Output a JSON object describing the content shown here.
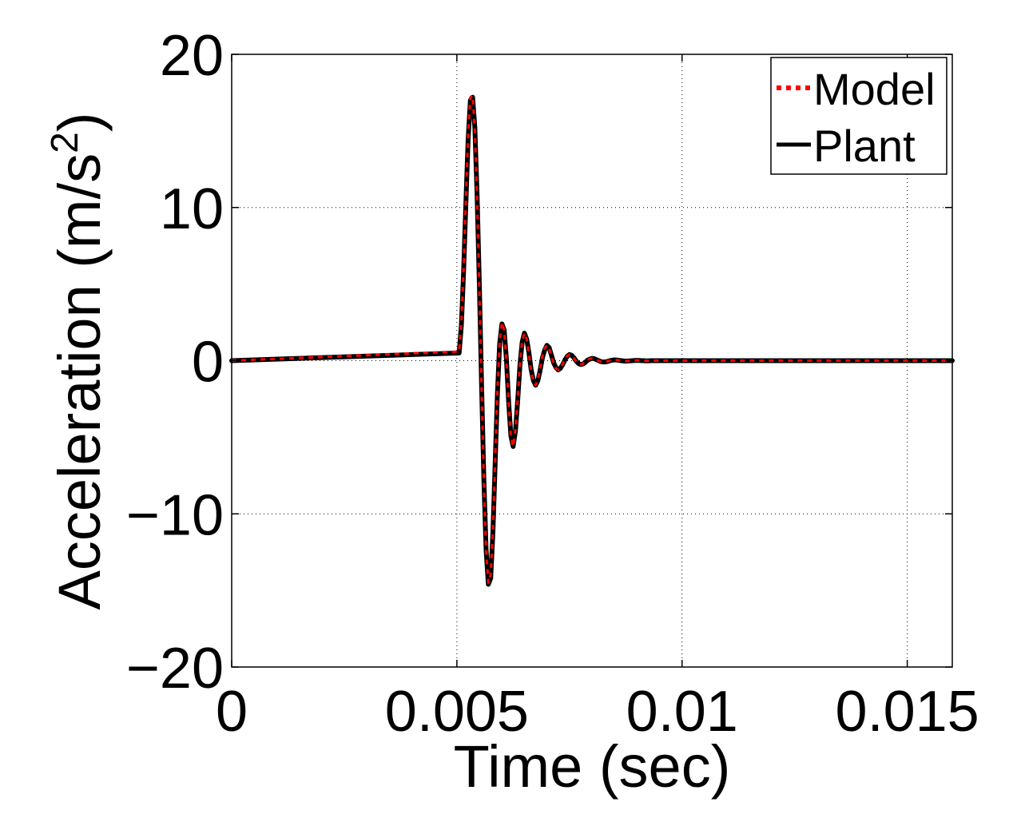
{
  "chart_data": {
    "type": "line",
    "title": "",
    "xlabel": "Time (sec)",
    "ylabel_main": "Acceleration (m/s",
    "ylabel_sup": "2",
    "ylabel_close": ")",
    "xlim": [
      0,
      0.016
    ],
    "ylim": [
      -20,
      20
    ],
    "xticks": [
      0,
      0.005,
      0.01,
      0.015
    ],
    "xtick_labels": [
      "0",
      "0.005",
      "0.01",
      "0.015"
    ],
    "yticks": [
      -20,
      -10,
      0,
      10,
      20
    ],
    "ytick_labels": [
      "−20",
      "−10",
      "0",
      "10",
      "20"
    ],
    "grid": true,
    "legend_position": "top-right",
    "series": [
      {
        "name": "Model",
        "color": "#ff0000",
        "style": "dotted",
        "x": [
          0,
          0.00505,
          0.0051,
          0.00515,
          0.0052,
          0.00525,
          0.0053,
          0.00535,
          0.0054,
          0.00545,
          0.0055,
          0.00555,
          0.0056,
          0.00565,
          0.0057,
          0.00575,
          0.0058,
          0.00585,
          0.0059,
          0.00595,
          0.006,
          0.00605,
          0.0061,
          0.00615,
          0.0062,
          0.00625,
          0.0063,
          0.00635,
          0.0064,
          0.00645,
          0.0065,
          0.00655,
          0.0066,
          0.00665,
          0.0067,
          0.00675,
          0.0068,
          0.00685,
          0.0069,
          0.00695,
          0.007,
          0.00705,
          0.0071,
          0.00715,
          0.0072,
          0.00725,
          0.0073,
          0.00735,
          0.0074,
          0.00745,
          0.0075,
          0.00755,
          0.0076,
          0.00765,
          0.0077,
          0.00775,
          0.0078,
          0.00785,
          0.0079,
          0.00795,
          0.008,
          0.00805,
          0.0081,
          0.00815,
          0.0082,
          0.00825,
          0.0083,
          0.00835,
          0.0084,
          0.00845,
          0.0085,
          0.00855,
          0.0086,
          0.00865,
          0.0087,
          0.00875,
          0.0088,
          0.00885,
          0.0089,
          0.00895,
          0.009,
          0.00905,
          0.0091,
          0.00915,
          0.0092,
          0.00925,
          0.0093,
          0.00935,
          0.0094,
          0.00945,
          0.0095,
          0.00955,
          0.0096,
          0.00965,
          0.0097,
          0.00975,
          0.0098,
          0.00985,
          0.0099,
          0.00995,
          0.01,
          0.01005,
          0.0101,
          0.01015,
          0.0102,
          0.01025,
          0.0103,
          0.01035,
          0.0104,
          0.01045,
          0.0105,
          0.016
        ],
        "y": [
          0,
          0.6,
          2.5,
          6.0,
          10.5,
          14.8,
          17.2,
          17.3,
          15.0,
          10.5,
          4.5,
          -2.0,
          -8.0,
          -12.5,
          -14.5,
          -14.0,
          -11.0,
          -6.5,
          -2.0,
          1.2,
          2.5,
          2.0,
          0.0,
          -2.8,
          -5.0,
          -5.6,
          -4.5,
          -2.5,
          -0.2,
          1.3,
          1.8,
          1.4,
          0.4,
          -0.7,
          -1.4,
          -1.6,
          -1.2,
          -0.5,
          0.3,
          0.8,
          1.0,
          0.8,
          0.3,
          -0.2,
          -0.5,
          -0.6,
          -0.5,
          -0.2,
          0.1,
          0.3,
          0.4,
          0.35,
          0.15,
          -0.05,
          -0.2,
          -0.25,
          -0.2,
          -0.1,
          0.05,
          0.12,
          0.15,
          0.12,
          0.06,
          -0.02,
          -0.07,
          -0.09,
          -0.08,
          -0.04,
          0.01,
          0.04,
          0.05,
          0.04,
          0.02,
          0.0,
          -0.02,
          -0.03,
          -0.02,
          -0.01,
          0.01,
          0.01,
          0.02,
          0.01,
          0.0,
          0.0,
          -0.01,
          -0.01,
          0.0,
          0.0,
          0.0,
          0.0,
          0.0,
          0.0,
          0.0,
          0.0,
          0.0,
          0.0,
          0.0,
          0.0,
          0.0,
          0.0,
          0.0,
          0.0,
          0.0,
          0.0,
          0.0,
          0.0,
          0.0,
          0.0,
          0.0,
          0.0,
          0.0,
          0.0
        ]
      },
      {
        "name": "Plant",
        "color": "#000000",
        "style": "solid",
        "x": [
          0,
          0.00505,
          0.0051,
          0.00515,
          0.0052,
          0.00525,
          0.0053,
          0.00535,
          0.0054,
          0.00545,
          0.0055,
          0.00555,
          0.0056,
          0.00565,
          0.0057,
          0.00575,
          0.0058,
          0.00585,
          0.0059,
          0.00595,
          0.006,
          0.00605,
          0.0061,
          0.00615,
          0.0062,
          0.00625,
          0.0063,
          0.00635,
          0.0064,
          0.00645,
          0.0065,
          0.00655,
          0.0066,
          0.00665,
          0.0067,
          0.00675,
          0.0068,
          0.00685,
          0.0069,
          0.00695,
          0.007,
          0.00705,
          0.0071,
          0.00715,
          0.0072,
          0.00725,
          0.0073,
          0.00735,
          0.0074,
          0.00745,
          0.0075,
          0.00755,
          0.0076,
          0.00765,
          0.0077,
          0.00775,
          0.0078,
          0.00785,
          0.0079,
          0.00795,
          0.008,
          0.00805,
          0.0081,
          0.00815,
          0.0082,
          0.00825,
          0.0083,
          0.00835,
          0.0084,
          0.00845,
          0.0085,
          0.00855,
          0.0086,
          0.00865,
          0.0087,
          0.00875,
          0.0088,
          0.00885,
          0.0089,
          0.00895,
          0.009,
          0.00905,
          0.0091,
          0.00915,
          0.0092,
          0.00925,
          0.0093,
          0.00935,
          0.0094,
          0.00945,
          0.0095,
          0.00955,
          0.0096,
          0.00965,
          0.0097,
          0.00975,
          0.0098,
          0.00985,
          0.0099,
          0.00995,
          0.01,
          0.01005,
          0.0101,
          0.01015,
          0.0102,
          0.01025,
          0.0103,
          0.01035,
          0.0104,
          0.01045,
          0.0105,
          0.016
        ],
        "y": [
          0,
          0.5,
          2.3,
          5.8,
          10.2,
          14.5,
          17.0,
          17.2,
          15.2,
          10.8,
          4.8,
          -1.8,
          -7.8,
          -12.4,
          -14.6,
          -14.2,
          -11.2,
          -6.7,
          -2.2,
          1.1,
          2.4,
          2.0,
          0.1,
          -2.7,
          -4.9,
          -5.6,
          -4.6,
          -2.6,
          -0.3,
          1.2,
          1.8,
          1.4,
          0.5,
          -0.6,
          -1.3,
          -1.6,
          -1.3,
          -0.6,
          0.2,
          0.7,
          1.0,
          0.85,
          0.35,
          -0.15,
          -0.45,
          -0.6,
          -0.5,
          -0.25,
          0.05,
          0.28,
          0.4,
          0.35,
          0.18,
          -0.03,
          -0.18,
          -0.25,
          -0.22,
          -0.12,
          0.03,
          0.1,
          0.15,
          0.13,
          0.07,
          0.0,
          -0.06,
          -0.09,
          -0.08,
          -0.05,
          0.0,
          0.03,
          0.05,
          0.04,
          0.02,
          0.0,
          -0.02,
          -0.03,
          -0.02,
          -0.01,
          0.0,
          0.01,
          0.02,
          0.01,
          0.0,
          0.0,
          -0.01,
          -0.01,
          0.0,
          0.0,
          0.0,
          0.0,
          0.0,
          0.0,
          0.0,
          0.0,
          0.0,
          0.0,
          0.0,
          0.0,
          0.0,
          0.0,
          0.0,
          0.0,
          0.0,
          0.0,
          0.0,
          0.0,
          0.0,
          0.0,
          0.0,
          0.0,
          0.0,
          0.0
        ]
      }
    ]
  }
}
